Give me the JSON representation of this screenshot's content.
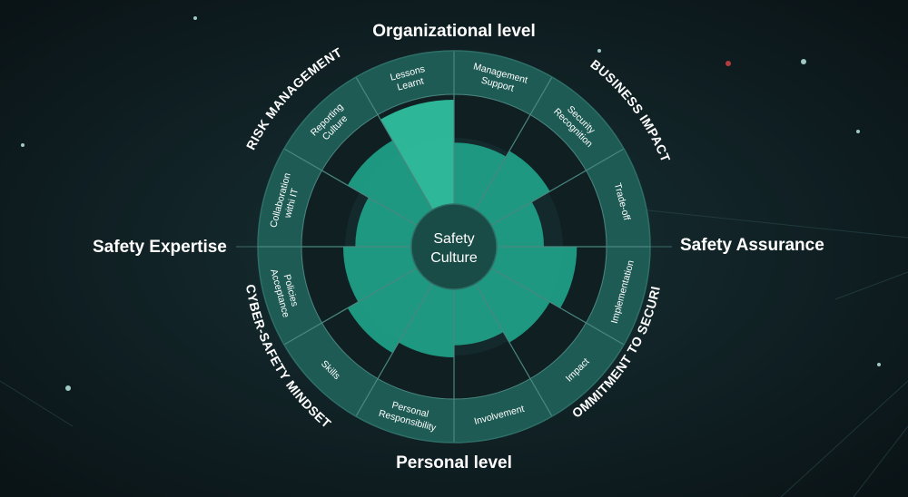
{
  "axes": {
    "top": "Organizational level",
    "bottom": "Personal level",
    "left": "Safety Expertise",
    "right": "Safety Assurance"
  },
  "center": {
    "line1": "Safety",
    "line2": "Culture"
  },
  "groups": [
    {
      "id": "risk",
      "name": "RISK MANAGEMENT"
    },
    {
      "id": "business",
      "name": "BUSINESS IMPACT"
    },
    {
      "id": "commitment",
      "name": "COMMITMENT TO SECURITY"
    },
    {
      "id": "cyber",
      "name": "CYBER-SAFETY MINDSET"
    }
  ],
  "segments": [
    {
      "lines": [
        "Management",
        "Support"
      ],
      "level": 0.56
    },
    {
      "lines": [
        "Security",
        "Recognition"
      ],
      "level": 0.62
    },
    {
      "lines": [
        "Trade-off"
      ],
      "level": 0.43
    },
    {
      "lines": [
        "Implementation"
      ],
      "level": 0.73
    },
    {
      "lines": [
        "Impact"
      ],
      "level": 0.62
    },
    {
      "lines": [
        "Involvement"
      ],
      "level": 0.51
    },
    {
      "lines": [
        "Personal",
        "Responsibility"
      ],
      "level": 0.62
    },
    {
      "lines": [
        "Skills"
      ],
      "level": 0.73
    },
    {
      "lines": [
        "Policies",
        "Acceptance"
      ],
      "level": 0.62
    },
    {
      "lines": [
        "Collaboration",
        "withi IT"
      ],
      "level": 0.51
    },
    {
      "lines": [
        "Reporting",
        "Culture"
      ],
      "level": 0.73
    },
    {
      "lines": [
        "Lessons",
        "Learnt"
      ],
      "level": 0.95
    }
  ],
  "colors": {
    "background": "#0f1a1d",
    "ring": "#1f5b55",
    "ring_divider": "#4a8780",
    "inner_bg": "#101f22",
    "fill": "#1f9e86",
    "fill_light": "#2fbf9f",
    "center": "#1a4c47",
    "text": "#ffffff"
  }
}
